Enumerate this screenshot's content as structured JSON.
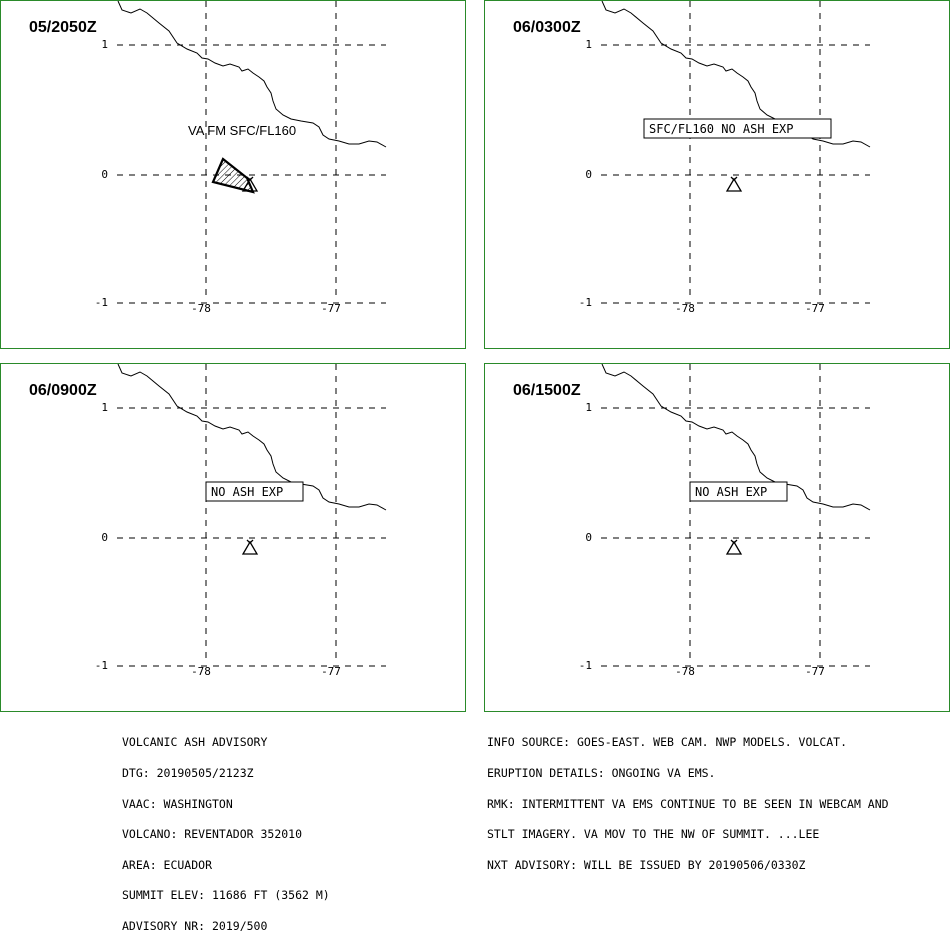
{
  "panels": [
    {
      "time": "05/2050Z",
      "label": "VA FM SFC/FL160",
      "label_style": "plain",
      "ash": true
    },
    {
      "time": "06/0300Z",
      "label": "SFC/FL160 NO ASH EXP",
      "label_style": "box",
      "ash": false
    },
    {
      "time": "06/0900Z",
      "label": "NO ASH EXP",
      "label_style": "box",
      "ash": false
    },
    {
      "time": "06/1500Z",
      "label": "NO ASH EXP",
      "label_style": "box",
      "ash": false
    }
  ],
  "axes": {
    "lat_labels": [
      "1",
      "0",
      "-1"
    ],
    "lon_labels": [
      "-78",
      "-77"
    ]
  },
  "advisory_left": [
    "VOLCANIC ASH ADVISORY",
    "DTG: 20190505/2123Z",
    "VAAC: WASHINGTON",
    "VOLCANO: REVENTADOR 352010",
    "AREA: ECUADOR",
    "SUMMIT ELEV: 11686 FT (3562 M)",
    "ADVISORY NR: 2019/500"
  ],
  "advisory_right": [
    "INFO SOURCE: GOES-EAST. WEB CAM. NWP MODELS. VOLCAT.",
    "ERUPTION DETAILS: ONGOING VA EMS.",
    "RMK: INTERMITTENT VA EMS CONTINUE TO BE SEEN IN WEBCAM AND",
    "STLT IMAGERY. VA MOV TO THE NW OF SUMMIT. ...LEE",
    "NXT ADVISORY: WILL BE ISSUED BY 20190506/0330Z"
  ],
  "colors": {
    "panel_border": "#2a8a2a",
    "map_ink": "#000000"
  }
}
